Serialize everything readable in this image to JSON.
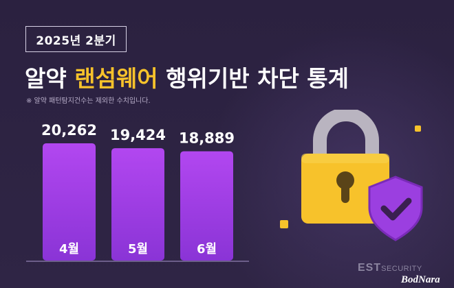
{
  "header": {
    "period": "2025년 2분기",
    "title_part1": "알약 ",
    "title_highlight": "랜섬웨어",
    "title_part2": " 행위기반 차단 통계",
    "footnote": "※ 알약 패턴탐지건수는 제외한 수치입니다."
  },
  "chart_data": {
    "type": "bar",
    "categories": [
      "4월",
      "5월",
      "6월"
    ],
    "values": [
      20262,
      19424,
      18889
    ],
    "value_labels": [
      "20,262",
      "19,424",
      "18,889"
    ],
    "title": "",
    "xlabel": "",
    "ylabel": "",
    "grid": false,
    "bar_color_top": "#b247f0",
    "bar_color_bottom": "#8a34d6"
  },
  "illustration": {
    "icon": "padlock-with-shield-check",
    "lock_color": "#f7c22b",
    "shackle_color": "#b9b4c0",
    "shield_color": "#9b3fe0"
  },
  "brand": {
    "name": "EST",
    "suffix": "SECURITY",
    "watermark": "BodNara"
  }
}
